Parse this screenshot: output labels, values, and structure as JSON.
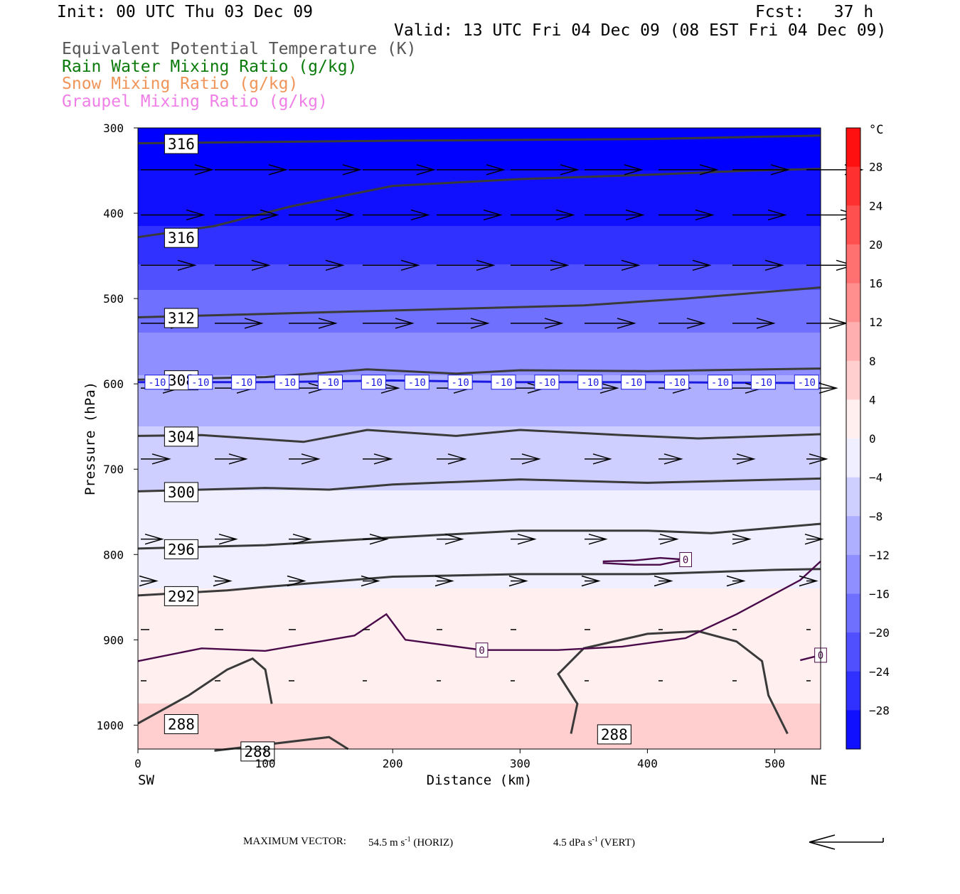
{
  "header": {
    "init": "Init: 00 UTC Thu 03 Dec 09",
    "fcst": "Fcst:   37 h",
    "valid": "Valid: 13 UTC Fri 04 Dec 09 (08 EST Fri 04 Dec 09)",
    "fields": [
      {
        "label": "Equivalent Potential Temperature (K)",
        "color": "#555555"
      },
      {
        "label": "Rain Water Mixing Ratio (g/kg)",
        "color": "#0a7a0a"
      },
      {
        "label": "Snow Mixing Ratio (g/kg)",
        "color": "#f0955a"
      },
      {
        "label": "Graupel Mixing Ratio (g/kg)",
        "color": "#ef7fe6"
      }
    ]
  },
  "chart_data": {
    "type": "heatmap",
    "title": "",
    "xlabel": "Distance (km)",
    "ylabel": "Pressure (hPa)",
    "xlim": [
      0,
      536
    ],
    "ylim": [
      1028,
      300
    ],
    "y_log": false,
    "x_ticks": [
      0,
      100,
      200,
      300,
      400,
      500
    ],
    "y_ticks": [
      300,
      400,
      500,
      600,
      700,
      800,
      900,
      1000
    ],
    "x_end_labels": {
      "left": "SW",
      "right": "NE"
    },
    "colorbar": {
      "unit": "°C",
      "min": -32,
      "max": 32,
      "step": 4,
      "tick_labels": [
        28,
        24,
        20,
        16,
        12,
        8,
        4,
        0,
        -4,
        -8,
        -12,
        -16,
        -20,
        -24,
        -28
      ],
      "cold_color": "#0000ff",
      "warm_color": "#ff0000",
      "neutral_color": "#ffffff"
    },
    "temperature_field": {
      "pressure": [
        300,
        350,
        400,
        450,
        500,
        550,
        600,
        650,
        700,
        750,
        800,
        850,
        900,
        950,
        1000,
        1028
      ],
      "temperature_c": [
        -34,
        -32,
        -29,
        -25,
        -19,
        -15,
        -11,
        -8,
        -5,
        -3,
        -2,
        0.5,
        1.5,
        3.0,
        5.0,
        6.5
      ]
    },
    "theta_e_contours": [
      {
        "label": "316",
        "points": [
          [
            0,
            318
          ],
          [
            200,
            315
          ],
          [
            400,
            313
          ],
          [
            536,
            309
          ]
        ]
      },
      {
        "label": "316",
        "points": [
          [
            0,
            428
          ],
          [
            60,
            415
          ],
          [
            120,
            392
          ],
          [
            200,
            368
          ],
          [
            300,
            360
          ],
          [
            400,
            355
          ],
          [
            480,
            350
          ],
          [
            536,
            348
          ]
        ]
      },
      {
        "label": "312",
        "points": [
          [
            0,
            522
          ],
          [
            150,
            516
          ],
          [
            250,
            512
          ],
          [
            350,
            508
          ],
          [
            430,
            500
          ],
          [
            536,
            487
          ]
        ]
      },
      {
        "label": "308",
        "points": [
          [
            0,
            595
          ],
          [
            100,
            592
          ],
          [
            180,
            583
          ],
          [
            250,
            588
          ],
          [
            300,
            584
          ],
          [
            400,
            585
          ],
          [
            536,
            582
          ]
        ]
      },
      {
        "label": "304",
        "points": [
          [
            0,
            661
          ],
          [
            50,
            660
          ],
          [
            130,
            668
          ],
          [
            180,
            654
          ],
          [
            250,
            661
          ],
          [
            300,
            654
          ],
          [
            380,
            660
          ],
          [
            440,
            664
          ],
          [
            536,
            659
          ]
        ]
      },
      {
        "label": "300",
        "points": [
          [
            0,
            726
          ],
          [
            100,
            722
          ],
          [
            150,
            724
          ],
          [
            200,
            718
          ],
          [
            300,
            712
          ],
          [
            400,
            716
          ],
          [
            536,
            711
          ]
        ]
      },
      {
        "label": "296",
        "points": [
          [
            0,
            793
          ],
          [
            100,
            789
          ],
          [
            200,
            780
          ],
          [
            300,
            772
          ],
          [
            400,
            772
          ],
          [
            450,
            775
          ],
          [
            536,
            764
          ]
        ]
      },
      {
        "label": "292",
        "points": [
          [
            0,
            848
          ],
          [
            70,
            842
          ],
          [
            100,
            838
          ],
          [
            200,
            826
          ],
          [
            300,
            823
          ],
          [
            400,
            823
          ],
          [
            500,
            818
          ],
          [
            536,
            817
          ]
        ]
      },
      {
        "label": "288",
        "points": [
          [
            0,
            998
          ],
          [
            40,
            965
          ],
          [
            70,
            935
          ],
          [
            90,
            922
          ],
          [
            100,
            935
          ],
          [
            105,
            975
          ]
        ]
      },
      {
        "label": "288",
        "points": [
          [
            340,
            1010
          ],
          [
            345,
            975
          ],
          [
            330,
            940
          ],
          [
            350,
            910
          ],
          [
            400,
            893
          ],
          [
            440,
            890
          ],
          [
            470,
            902
          ],
          [
            490,
            925
          ],
          [
            495,
            965
          ],
          [
            510,
            1010
          ]
        ]
      },
      {
        "label": "288",
        "points": [
          [
            60,
            1030
          ],
          [
            150,
            1014
          ],
          [
            165,
            1028
          ]
        ]
      }
    ],
    "isotherm_contours": [
      {
        "label": "-10",
        "points": [
          [
            0,
            598
          ],
          [
            100,
            598
          ],
          [
            200,
            596
          ],
          [
            300,
            598
          ],
          [
            400,
            598
          ],
          [
            536,
            599
          ]
        ]
      },
      {
        "label": "0",
        "points": [
          [
            0,
            925
          ],
          [
            50,
            910
          ],
          [
            100,
            913
          ],
          [
            170,
            895
          ],
          [
            195,
            870
          ],
          [
            210,
            900
          ],
          [
            270,
            912
          ],
          [
            330,
            912
          ],
          [
            380,
            908
          ],
          [
            430,
            898
          ],
          [
            470,
            870
          ],
          [
            520,
            830
          ],
          [
            536,
            808
          ]
        ]
      },
      {
        "label": "0",
        "points": [
          [
            365,
            808
          ],
          [
            390,
            807
          ],
          [
            410,
            804
          ],
          [
            430,
            806
          ],
          [
            410,
            812
          ],
          [
            390,
            812
          ],
          [
            365,
            810
          ]
        ]
      },
      {
        "label": "0",
        "points": [
          [
            520,
            924
          ],
          [
            536,
            918
          ]
        ]
      }
    ],
    "wind_vectors": [
      {
        "pressure": 349,
        "arrow_lengths": [
          100,
          100,
          100,
          100,
          94,
          94,
          80,
          82,
          78,
          78
        ]
      },
      {
        "pressure": 402,
        "arrow_lengths": [
          88,
          88,
          90,
          92,
          90,
          88,
          82,
          76,
          74,
          72
        ]
      },
      {
        "pressure": 461,
        "arrow_lengths": [
          76,
          76,
          76,
          78,
          80,
          80,
          76,
          72,
          70,
          66
        ]
      },
      {
        "pressure": 529,
        "arrow_lengths": [
          66,
          66,
          66,
          70,
          72,
          72,
          70,
          64,
          58,
          56
        ]
      },
      {
        "pressure": 605,
        "arrow_lengths": [
          55,
          55,
          52,
          50,
          48,
          48,
          46,
          44,
          42,
          42
        ]
      },
      {
        "pressure": 688,
        "arrow_lengths": [
          40,
          44,
          42,
          40,
          40,
          40,
          36,
          32,
          30,
          28
        ]
      },
      {
        "pressure": 782,
        "arrow_lengths": [
          30,
          30,
          30,
          34,
          36,
          34,
          30,
          26,
          24,
          22
        ]
      },
      {
        "pressure": 831,
        "arrow_lengths": [
          22,
          22,
          22,
          22,
          22,
          22,
          20,
          18,
          16,
          14
        ]
      },
      {
        "pressure": 888,
        "arrow_lengths": [
          12,
          12,
          10,
          10,
          8,
          8,
          8,
          6,
          6,
          6
        ]
      },
      {
        "pressure": 948,
        "arrow_lengths": [
          8,
          8,
          8,
          6,
          6,
          6,
          6,
          6,
          6,
          6
        ]
      }
    ],
    "footer": {
      "max_vector_label": "MAXIMUM VECTOR:",
      "horiz": "54.5 m s",
      "horiz_sup": "-1",
      "horiz_tag": "(HORIZ)",
      "vert": "4.5 dPa s",
      "vert_sup": "-1",
      "vert_tag": "(VERT)"
    }
  }
}
